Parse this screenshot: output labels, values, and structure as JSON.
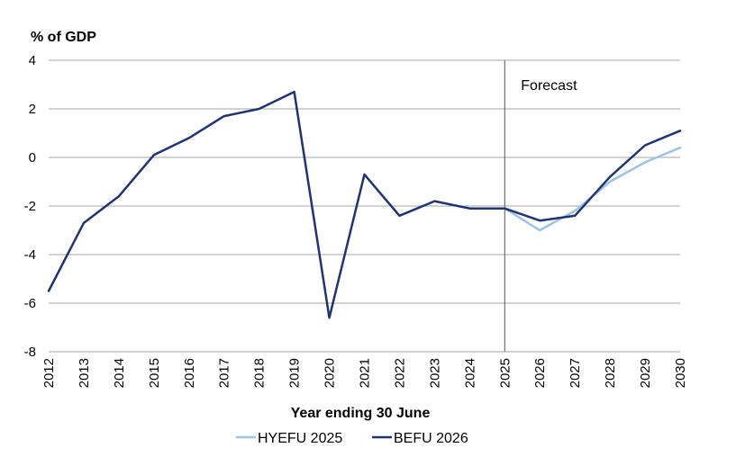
{
  "chart_data": {
    "type": "line",
    "ylabel": "% of GDP",
    "xlabel": "Year ending 30 June",
    "ylim": [
      -8,
      4
    ],
    "yticks": [
      4,
      2,
      0,
      -2,
      -4,
      -6,
      -8
    ],
    "categories": [
      "2012",
      "2013",
      "2014",
      "2015",
      "2016",
      "2017",
      "2018",
      "2019",
      "2020",
      "2021",
      "2022",
      "2023",
      "2024",
      "2025",
      "2026",
      "2027",
      "2028",
      "2029",
      "2030"
    ],
    "grid": true,
    "legend_position": "bottom",
    "annotation": {
      "text": "Forecast",
      "at_category": "2025"
    },
    "series": [
      {
        "name": "HYEFU 2025",
        "color": "#9dc3e6",
        "values": [
          null,
          null,
          null,
          null,
          null,
          null,
          null,
          null,
          null,
          null,
          null,
          null,
          null,
          -2.1,
          -3.0,
          -2.2,
          -1.0,
          -0.2,
          0.4
        ]
      },
      {
        "name": "BEFU 2026",
        "color": "#1f3470",
        "values": [
          -5.5,
          -2.7,
          -1.6,
          0.1,
          0.8,
          1.7,
          2.0,
          2.7,
          -6.6,
          -0.7,
          -2.4,
          -1.8,
          -2.1,
          -2.1,
          -2.6,
          -2.4,
          -0.8,
          0.5,
          1.1
        ]
      }
    ]
  }
}
